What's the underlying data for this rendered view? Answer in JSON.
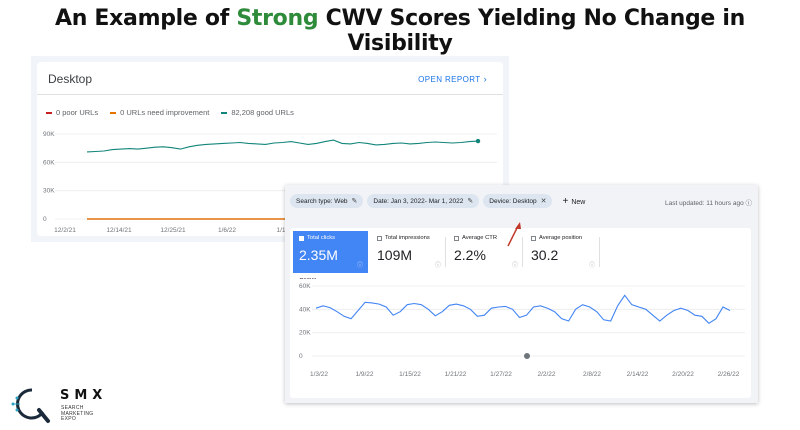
{
  "slide": {
    "title_prefix": "An Example of ",
    "title_accent": "Strong",
    "title_suffix": " CWV Scores Yielding No Change in Visibility"
  },
  "cwv": {
    "header": "Desktop",
    "open_report": "OPEN REPORT",
    "legend": [
      {
        "label": "0 poor URLs",
        "color": "#c5221f"
      },
      {
        "label": "0 URLs need improvement",
        "color": "#e37400"
      },
      {
        "label": "82,208 good URLs",
        "color": "#12857a"
      }
    ]
  },
  "gsc": {
    "filters": [
      {
        "label": "Search type: Web",
        "icon": "pencil-icon"
      },
      {
        "label": "Date: Jan 3, 2022- Mar 1, 2022",
        "icon": "pencil-icon"
      },
      {
        "label": "Device: Desktop",
        "icon": "close-icon"
      }
    ],
    "new_label": "New",
    "last_updated": "Last updated: 11 hours ago",
    "metrics": [
      {
        "label": "Total clicks",
        "value": "2.35M",
        "active": true
      },
      {
        "label": "Total impressions",
        "value": "109M",
        "active": false
      },
      {
        "label": "Average CTR",
        "value": "2.2%",
        "active": false
      },
      {
        "label": "Average position",
        "value": "30.2",
        "active": false
      }
    ]
  },
  "logo": {
    "name": "SMX",
    "subtitle": [
      "SEARCH",
      "MARKETING",
      "EXPO"
    ]
  },
  "chart_data": [
    {
      "type": "line",
      "title": "",
      "y_ticks": [
        "0",
        "30K",
        "60K",
        "90K"
      ],
      "x_ticks": [
        "12/2/21",
        "12/14/21",
        "12/25/21",
        "1/6/22",
        "1/1"
      ],
      "ylim": [
        0,
        90000
      ],
      "series": [
        {
          "name": "82,208 good URLs",
          "color": "#12857a",
          "values": [
            71000,
            71500,
            72000,
            73500,
            74000,
            74500,
            74000,
            75000,
            76000,
            76500,
            75500,
            74000,
            76500,
            78000,
            79000,
            79500,
            80000,
            80500,
            81000,
            80000,
            79500,
            79000,
            80500,
            81000,
            82000,
            80500,
            79000,
            80000,
            82000,
            83500,
            80000,
            79500,
            81000,
            80000,
            78500,
            79000,
            80000,
            80500,
            79500,
            80000,
            81000,
            81500,
            81000,
            80500,
            81000,
            82000,
            82500
          ]
        },
        {
          "name": "0 poor URLs",
          "color": "#c5221f",
          "values": [
            0,
            0
          ]
        },
        {
          "name": "0 URLs need improvement",
          "color": "#e37400",
          "values": [
            0,
            0
          ]
        }
      ]
    },
    {
      "type": "line",
      "ylabel": "Clicks",
      "y_ticks": [
        "0",
        "20K",
        "40K",
        "60K"
      ],
      "x_ticks": [
        "1/3/22",
        "1/9/22",
        "1/15/22",
        "1/21/22",
        "1/27/22",
        "2/2/22",
        "2/8/22",
        "2/14/22",
        "2/20/22",
        "2/26/22"
      ],
      "ylim": [
        0,
        60000
      ],
      "series": [
        {
          "name": "Clicks",
          "color": "#4285f4",
          "values": [
            41000,
            43000,
            41500,
            38000,
            34000,
            32000,
            39000,
            46000,
            45500,
            44500,
            42000,
            35000,
            38000,
            44000,
            45000,
            44000,
            40000,
            34500,
            38000,
            43500,
            44500,
            43000,
            40000,
            34000,
            35000,
            41000,
            42000,
            42500,
            40000,
            33000,
            35000,
            42000,
            43000,
            41000,
            38000,
            32000,
            30000,
            40000,
            44000,
            42000,
            38000,
            31000,
            30000,
            43000,
            52000,
            44000,
            42000,
            40000,
            35000,
            30000,
            35000,
            39000,
            41000,
            39000,
            35000,
            34000,
            28000,
            32000,
            42000,
            39000
          ]
        }
      ]
    }
  ]
}
